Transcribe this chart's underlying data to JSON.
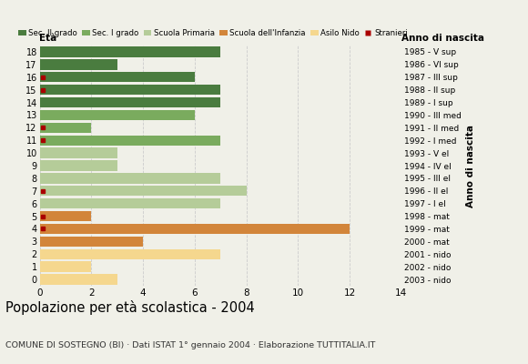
{
  "ages": [
    18,
    17,
    16,
    15,
    14,
    13,
    12,
    11,
    10,
    9,
    8,
    7,
    6,
    5,
    4,
    3,
    2,
    1,
    0
  ],
  "years": [
    "1985 - V sup",
    "1986 - VI sup",
    "1987 - III sup",
    "1988 - II sup",
    "1989 - I sup",
    "1990 - III med",
    "1991 - II med",
    "1992 - I med",
    "1993 - V el",
    "1994 - IV el",
    "1995 - III el",
    "1996 - II el",
    "1997 - I el",
    "1998 - mat",
    "1999 - mat",
    "2000 - mat",
    "2001 - nido",
    "2002 - nido",
    "2003 - nido"
  ],
  "values": [
    7,
    3,
    6,
    7,
    7,
    6,
    2,
    7,
    3,
    3,
    7,
    8,
    7,
    2,
    12,
    4,
    7,
    2,
    3
  ],
  "categories": {
    "sec2": [
      18,
      17,
      16,
      15,
      14
    ],
    "sec1": [
      13,
      12,
      11
    ],
    "primaria": [
      10,
      9,
      8,
      7,
      6
    ],
    "infanzia": [
      5,
      4,
      3
    ],
    "nido": [
      2,
      1,
      0
    ]
  },
  "stranieri_ages": [
    16,
    15,
    12,
    11,
    7,
    4,
    5
  ],
  "colors": {
    "sec2": "#4a7c3f",
    "sec1": "#7aab5e",
    "primaria": "#b5cc99",
    "infanzia": "#d2853a",
    "nido": "#f5d78e",
    "stranieri": "#aa0000"
  },
  "legend_labels": [
    "Sec. II grado",
    "Sec. I grado",
    "Scuola Primaria",
    "Scuola dell'Infanzia",
    "Asilo Nido",
    "Stranieri"
  ],
  "title": "Popolazione per età scolastica - 2004",
  "subtitle": "COMUNE DI SOSTEGNO (BI) · Dati ISTAT 1° gennaio 2004 · Elaborazione TUTTITALIA.IT",
  "label_left": "Età",
  "label_right": "Anno di nascita",
  "xlim": [
    0,
    14
  ],
  "bar_height": 0.82,
  "background_color": "#f0f0e8",
  "grid_color": "#cccccc"
}
